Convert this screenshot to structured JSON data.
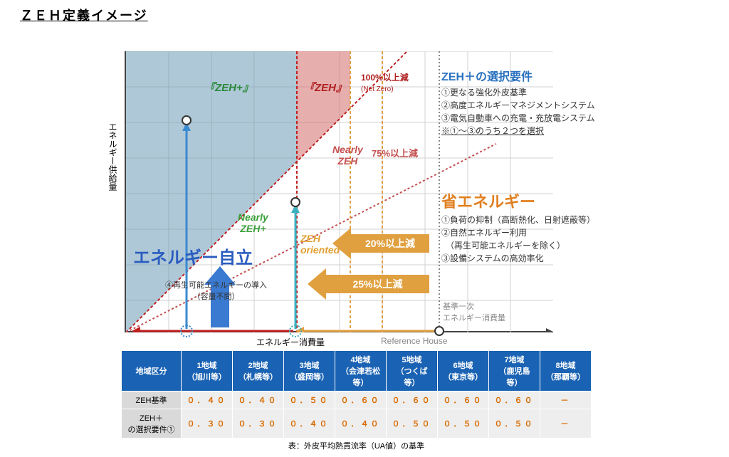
{
  "page_title": "ＺＥＨ定義イメージ",
  "axis": {
    "y": "エネルギー供給量",
    "x": "エネルギー消費量",
    "ref": "Reference House"
  },
  "regions": {
    "zehplus": {
      "label": "『ZEH+』",
      "color": "#6c9ab7",
      "fill_opacity": 0.55
    },
    "zeh": {
      "label": "『ZEH』",
      "color": "#d36b6b",
      "fill_opacity": 0.55
    },
    "nearly_zeh": {
      "label": "Nearly\nZEH",
      "color": "#d36b6b"
    },
    "nearly_zehp": {
      "label": "Nearly\nZEH+",
      "color": "#3aa03a"
    },
    "zeh_oriented": {
      "label": "ZEH\noriented",
      "color": "#e0a030"
    },
    "big_blue": {
      "label": "エネルギー自立",
      "color": "#2a5cc0"
    }
  },
  "diag_lines": {
    "netzero": {
      "label": "100%以上減",
      "sub": "(Net Zero)",
      "color": "#c02020"
    },
    "p75": {
      "label": "75%以上減",
      "color": "#c45050"
    }
  },
  "arrows": {
    "a20": {
      "label": "20%以上減",
      "color": "#e0a040"
    },
    "a25": {
      "label": "25%以上減",
      "color": "#e0a040"
    },
    "red_x": {
      "color": "#c02020"
    },
    "orange_x": {
      "color": "#e0a040"
    }
  },
  "side_right_top": {
    "title": "ZEH＋の選択要件",
    "title_color": "#2a72c0",
    "items": [
      "①更なる強化外皮基準",
      "②高度エネルギーマネジメントシステム",
      "③電気自動車への充電・充放電システム",
      "※①～③のうち２つを選択"
    ]
  },
  "side_right_mid": {
    "title": "省エネルギー",
    "title_color": "#e08020",
    "items": [
      "①負荷の抑制（高断熱化、日射遮蔽等）",
      "②自然エネルギー利用",
      "　（再生可能エネルギーを除く）",
      "③設備システムの高効率化"
    ]
  },
  "renewable_note": {
    "line1": "④再生可能エネルギーの導入",
    "line2": "（容量不問）"
  },
  "base_note": {
    "line1": "基準一次",
    "line2": "エネルギー消費量"
  },
  "table": {
    "headers": [
      "地域区分",
      "1地域\n（旭川等）",
      "2地域\n（札幌等）",
      "3地域\n（盛岡等）",
      "4地域\n（会津若松等）",
      "5地域\n（つくば等）",
      "6地域\n（東京等）",
      "7地域\n（鹿児島等）",
      "8地域\n（那覇等）"
    ],
    "rows": [
      {
        "head": "ZEH基準",
        "vals": [
          "０．４０",
          "０．４０",
          "０．５０",
          "０．６０",
          "０．６０",
          "０．６０",
          "０．６０",
          "－"
        ]
      },
      {
        "head": "ZEH＋\nの選択要件①",
        "vals": [
          "０．３０",
          "０．３０",
          "０．４０",
          "０．４０",
          "０．５０",
          "０．５０",
          "０．５０",
          "－"
        ]
      }
    ],
    "caption": "表：外皮平均熱貫流率（UA値）の基準"
  },
  "colors": {
    "grid": "#d0d0d0",
    "axis": "#444444",
    "ref_vline": "#888888",
    "blue_vline": "#3a8ad0",
    "green_vline": "#3aa03a"
  }
}
